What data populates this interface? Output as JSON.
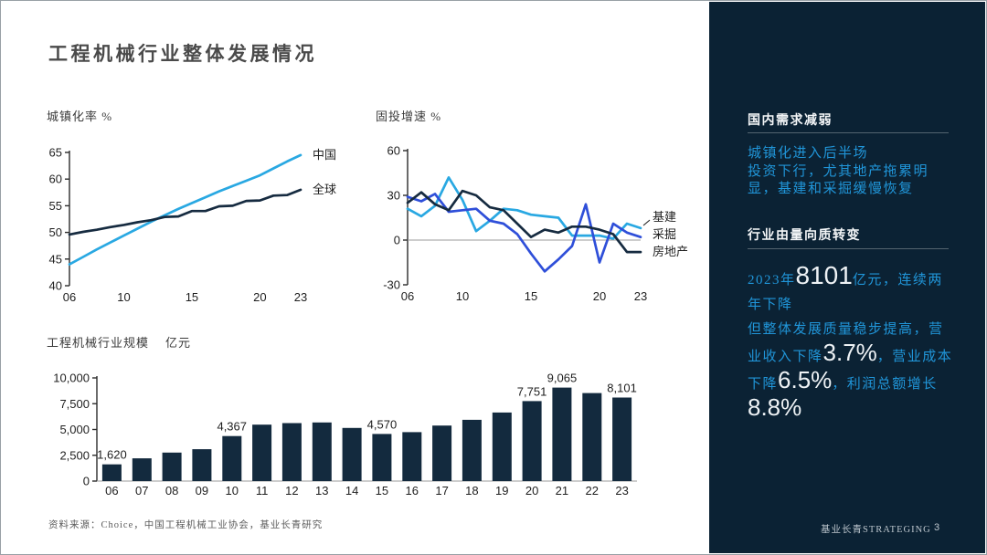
{
  "slide": {
    "title": "工程机械行业整体发展情况",
    "footer_source": "资料来源：Choice，中国工程机械工业协会，基业长青研究",
    "footer_brand": "基业长青STRATEGING",
    "page_number": "3"
  },
  "colors": {
    "panel_bg": "#0b2234",
    "accent_text_blue": "#2095d8",
    "light_blue": "#29a8e2",
    "royal_blue": "#2f4fd9",
    "dark_navy": "#162b40",
    "bar_navy": "#132a3e",
    "divider": "#53646f",
    "axis": "#2b2b2b",
    "zero_line_gray": "#9b9b9b"
  },
  "sidebar": {
    "section1": {
      "heading": "国内需求减弱",
      "line1": "城镇化进入后半场",
      "line2": "投资下行，尤其地产拖累明显，基建和采掘缓慢恢复"
    },
    "section2": {
      "heading": "行业由量向质转变",
      "highlight1": [
        {
          "t": "2023年",
          "big": false
        },
        {
          "t": "8101",
          "big": true
        },
        {
          "t": "亿元，连续两年下降",
          "big": false
        }
      ],
      "highlight2": [
        {
          "t": "但整体发展质量稳步提高，营业收入下降",
          "big": false
        },
        {
          "t": "3.7%",
          "big": true
        },
        {
          "t": "，营业成本下降",
          "big": false
        },
        {
          "t": "6.5%",
          "big": true
        },
        {
          "t": "，利润总额增长",
          "big": false
        },
        {
          "t": "8.8%",
          "big": true
        }
      ]
    }
  },
  "chart_data": [
    {
      "type": "line",
      "title": "城镇化率 %",
      "x": [
        "06",
        "07",
        "08",
        "09",
        "10",
        "11",
        "12",
        "13",
        "14",
        "15",
        "16",
        "17",
        "18",
        "19",
        "20",
        "21",
        "22",
        "23"
      ],
      "xticks": [
        0,
        4,
        9,
        14,
        17
      ],
      "ylim": [
        40,
        65
      ],
      "yticks": [
        40,
        45,
        50,
        55,
        60,
        65
      ],
      "zero_line": false,
      "legend_position": "right-of-line-end",
      "series": [
        {
          "name": "中国",
          "color": "#29a8e2",
          "values": [
            44.0,
            45.4,
            46.8,
            48.1,
            49.4,
            50.7,
            52.0,
            53.2,
            54.4,
            55.5,
            56.6,
            57.7,
            58.7,
            59.7,
            60.7,
            62.0,
            63.3,
            64.5
          ]
        },
        {
          "name": "全球",
          "color": "#162b40",
          "values": [
            49.6,
            50.1,
            50.5,
            51.0,
            51.4,
            51.9,
            52.3,
            52.9,
            53.0,
            54.0,
            54.0,
            54.9,
            55.0,
            55.9,
            56.0,
            56.9,
            57.0,
            58.0
          ]
        }
      ]
    },
    {
      "type": "line",
      "title": "固投增速 %",
      "x": [
        "06",
        "07",
        "08",
        "09",
        "10",
        "11",
        "12",
        "13",
        "14",
        "15",
        "16",
        "17",
        "18",
        "19",
        "20",
        "21",
        "22",
        "23"
      ],
      "xticks": [
        0,
        4,
        9,
        14,
        17
      ],
      "ylim": [
        -30,
        60
      ],
      "yticks": [
        -30,
        0,
        30,
        60
      ],
      "zero_line": true,
      "legend_position": "right-of-line-end",
      "series": [
        {
          "name": "基建",
          "color": "#29a8e2",
          "values": [
            21,
            16,
            23,
            42,
            27,
            6,
            13,
            21,
            20,
            17,
            16,
            15,
            3,
            3,
            3,
            1,
            11,
            8
          ]
        },
        {
          "name": "采掘",
          "color": "#2f4fd9",
          "values": [
            29,
            26,
            31,
            19,
            20,
            21,
            13,
            11,
            4,
            -9,
            -21,
            -13,
            -4,
            24,
            -15,
            11,
            5,
            2
          ]
        },
        {
          "name": "房地产",
          "color": "#162b40",
          "values": [
            25,
            32,
            24,
            20,
            33,
            30,
            22,
            20,
            11,
            2,
            7,
            5,
            9,
            9,
            7,
            4,
            -8,
            -8
          ]
        }
      ]
    },
    {
      "type": "bar",
      "title": "工程机械行业规模",
      "unit": "亿元",
      "categories": [
        "06",
        "07",
        "08",
        "09",
        "10",
        "11",
        "12",
        "13",
        "14",
        "15",
        "16",
        "17",
        "18",
        "19",
        "20",
        "21",
        "22",
        "23"
      ],
      "values": [
        1620,
        2200,
        2760,
        3090,
        4367,
        5470,
        5620,
        5680,
        5150,
        4570,
        4740,
        5380,
        5940,
        6650,
        7751,
        9065,
        8530,
        8101
      ],
      "value_labels": [
        "1,620",
        "",
        "",
        "",
        "4,367",
        "",
        "",
        "",
        "",
        "4,570",
        "",
        "",
        "",
        "",
        "7,751",
        "9,065",
        "",
        "8,101"
      ],
      "ylim": [
        0,
        10000
      ],
      "yticks": [
        0,
        2500,
        5000,
        7500,
        10000
      ],
      "yticklabels": [
        "0",
        "2,500",
        "5,000",
        "7,500",
        "10,000"
      ],
      "bar_color": "#132a3e"
    }
  ]
}
